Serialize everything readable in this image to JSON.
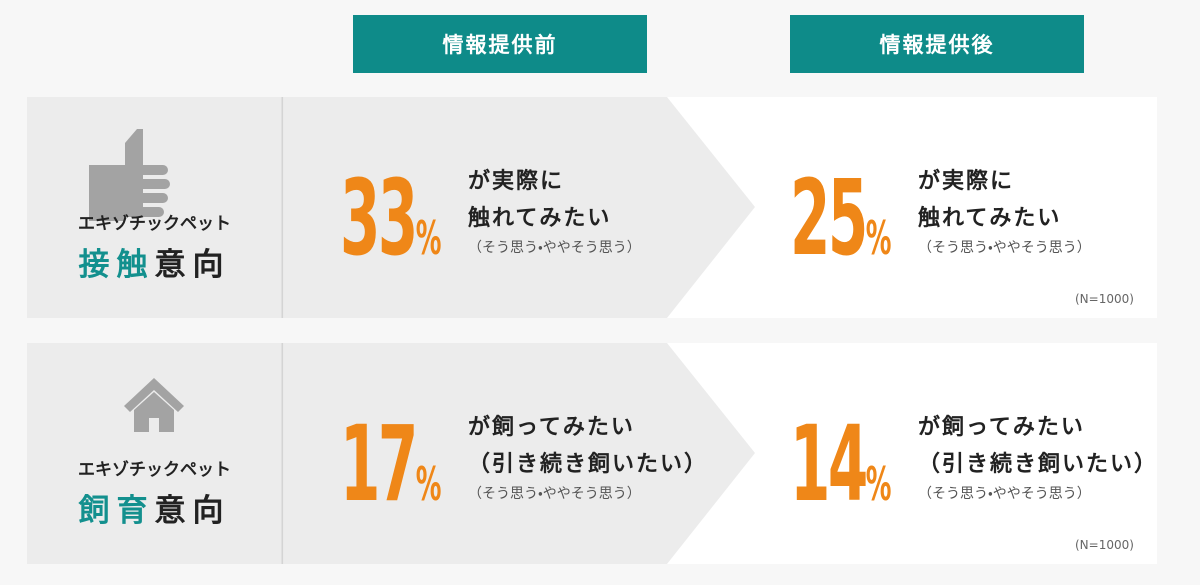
{
  "headers": [
    "情報提供前",
    "情報提供後"
  ],
  "rows": [
    {
      "category": "エキゾチックペット",
      "intent_highlight": "接触",
      "intent_rest": "意向",
      "before": {
        "value": 33,
        "unit": "%",
        "line1": "が実際に",
        "line2": "触れてみたい",
        "note": "（そう思う・ややそう思う）"
      },
      "after": {
        "value": 25,
        "unit": "%",
        "line1": "が実際に",
        "line2": "触れてみたい",
        "note": "（そう思う・ややそう思う）"
      },
      "sample": "(N=1000)"
    },
    {
      "category": "エキゾチックペット",
      "intent_highlight": "飼育",
      "intent_rest": "意向",
      "before": {
        "value": 17,
        "unit": "%",
        "line1": "が飼ってみたい",
        "line2": "（引き続き飼いたい）",
        "note": "（そう思う・ややそう思う）"
      },
      "after": {
        "value": 14,
        "unit": "%",
        "line1": "が飼ってみたい",
        "line2": "（引き続き飼いたい）",
        "note": "（そう思う・ややそう思う）"
      },
      "sample": "(N=1000)"
    }
  ]
}
